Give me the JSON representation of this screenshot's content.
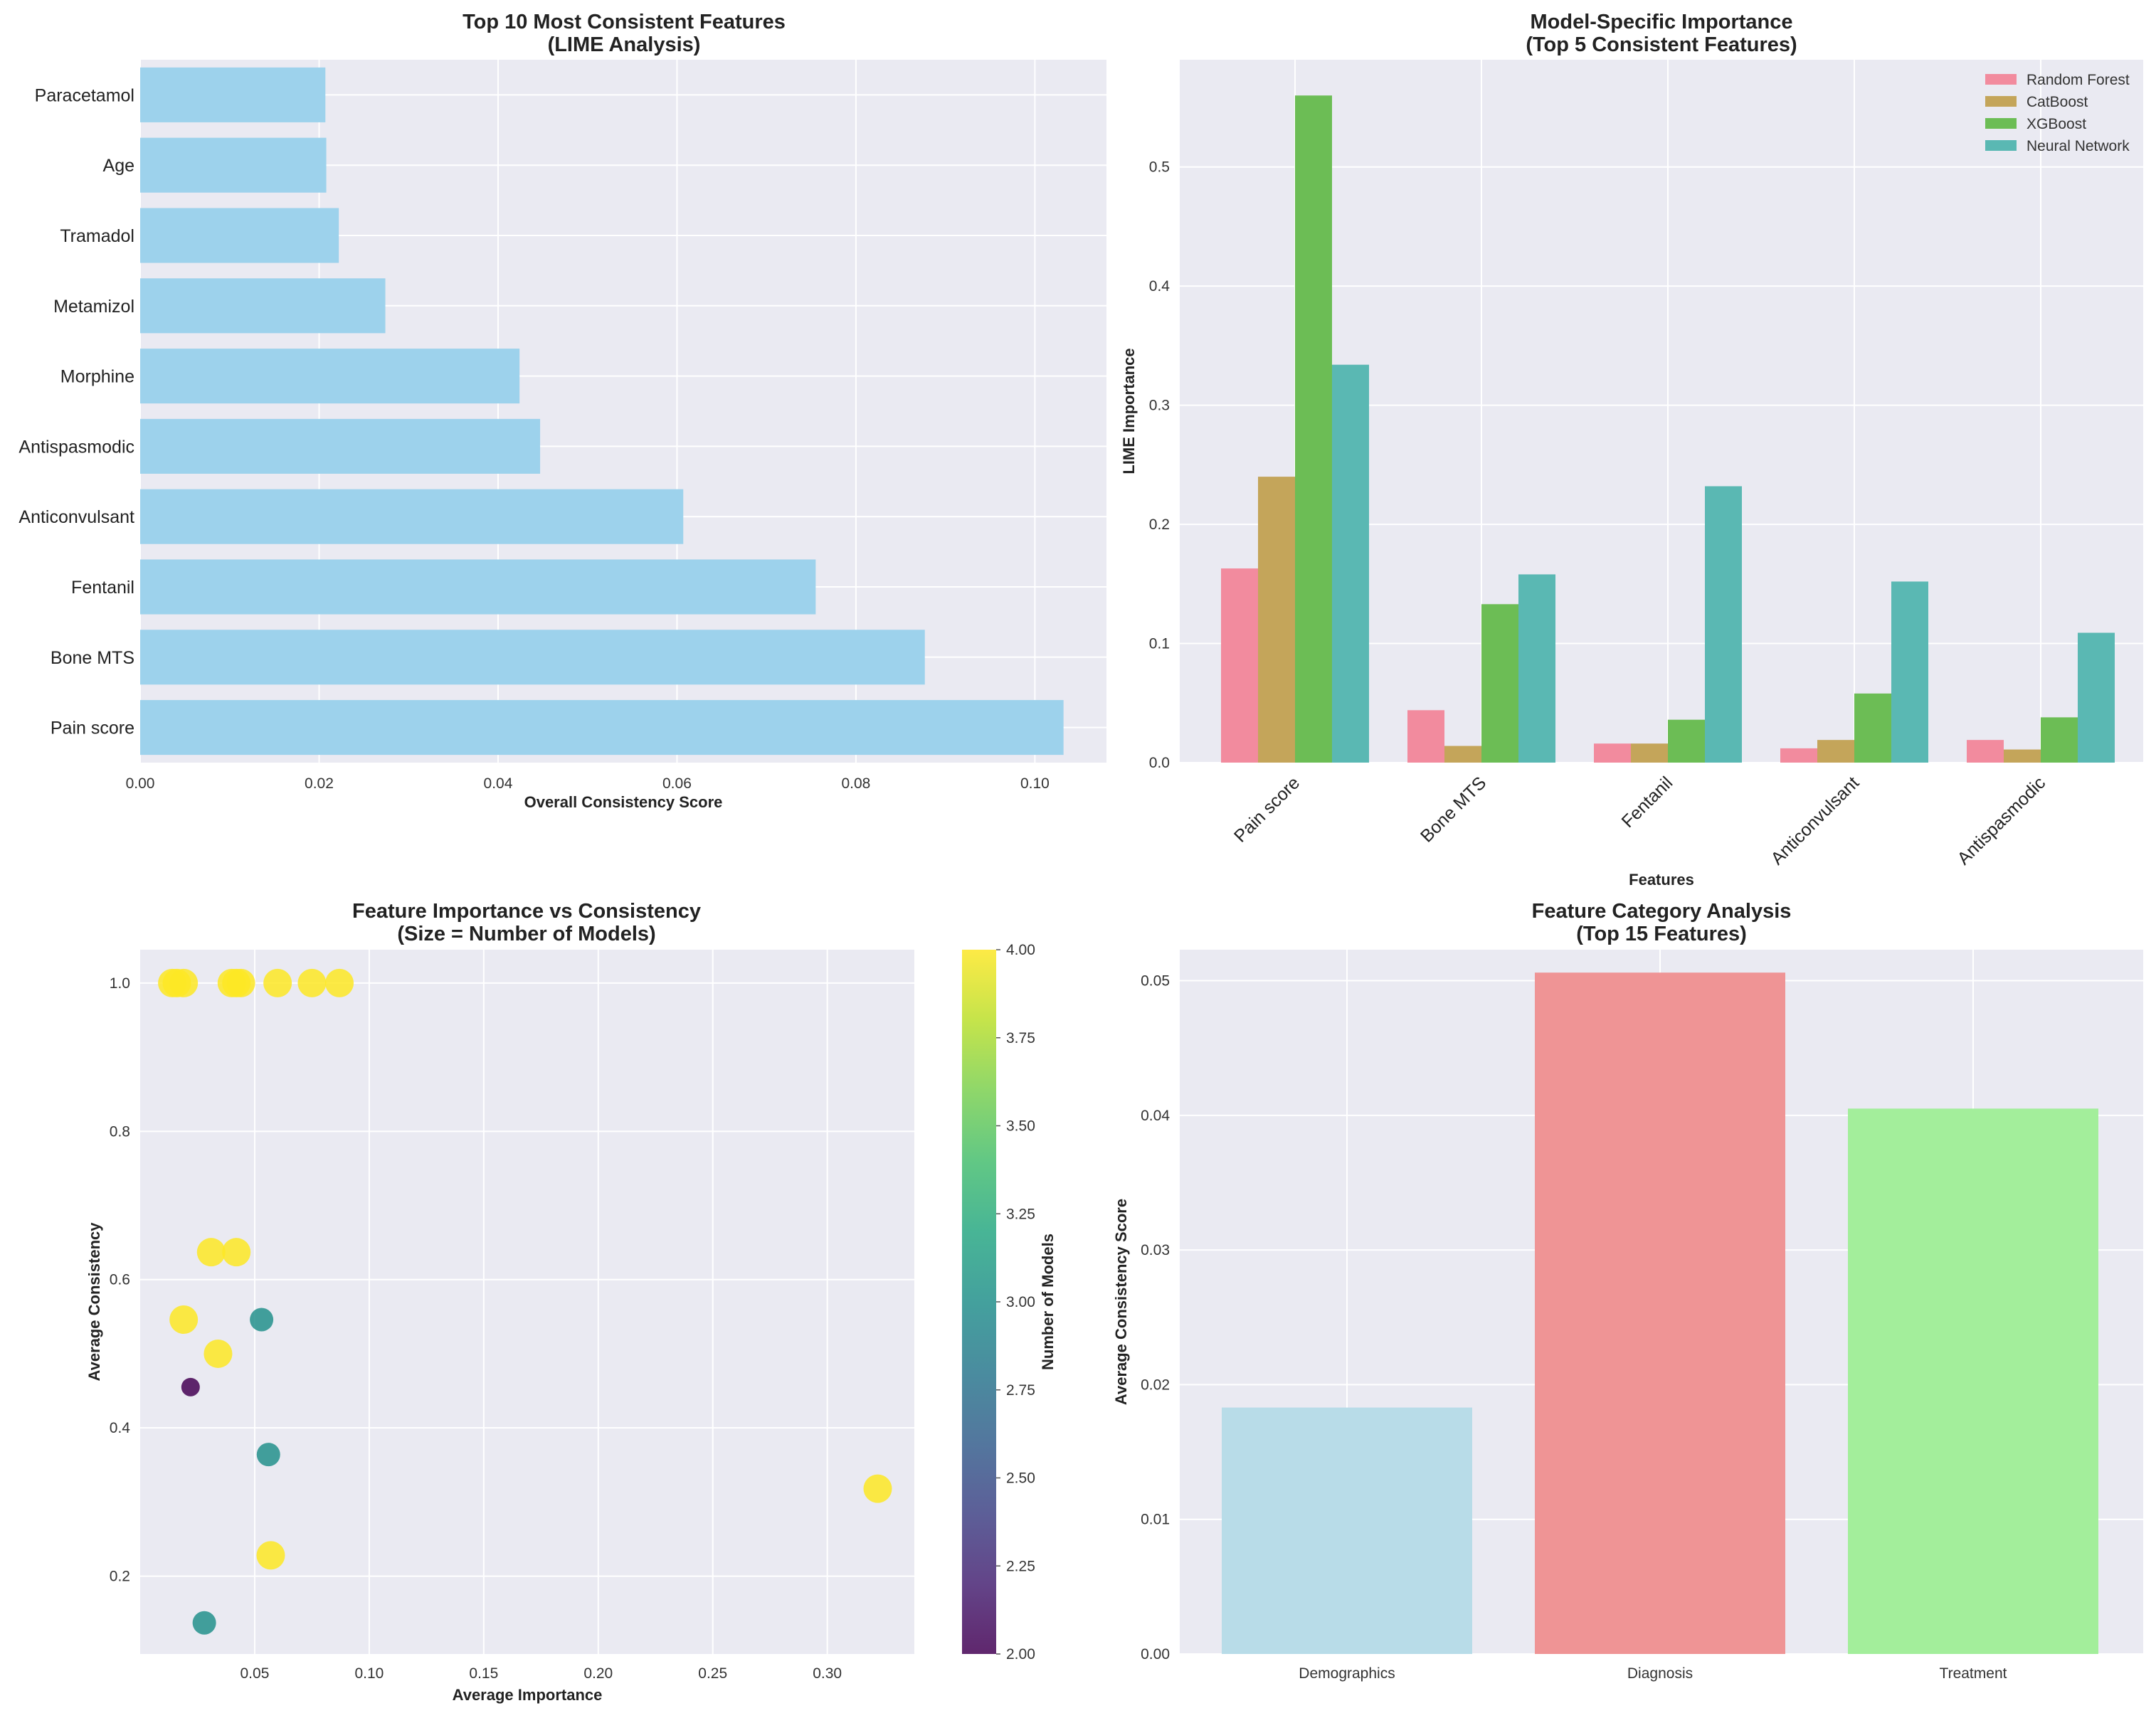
{
  "colors": {
    "panel_bg": "#eaeaf2",
    "grid": "#ffffff",
    "bar_blue": "#9dd2ec",
    "random_forest": "#f28b9e",
    "catboost": "#c4a55a",
    "xgboost": "#6cbd55",
    "neural_network": "#5ab8b3",
    "demographics": "#b8dce8",
    "diagnosis": "#ef9495",
    "treatment": "#a3ee9b"
  },
  "chart_data": [
    {
      "type": "bar",
      "orientation": "horizontal",
      "title": "Top 10 Most Consistent Features\n(LIME Analysis)",
      "xlabel": "Overall Consistency Score",
      "ylabel": "",
      "categories": [
        "Paracetamol",
        "Age",
        "Tramadol",
        "Metamizol",
        "Morphine",
        "Antispasmodic",
        "Anticonvulsant",
        "Fentanil",
        "Bone MTS",
        "Pain score"
      ],
      "values": [
        0.0207,
        0.0208,
        0.0222,
        0.0274,
        0.0424,
        0.0447,
        0.0607,
        0.0755,
        0.0877,
        0.1032
      ],
      "xlim": [
        0,
        0.108
      ],
      "xticks": [
        0.0,
        0.02,
        0.04,
        0.06,
        0.08,
        0.1
      ],
      "xtick_labels": [
        "0.00",
        "0.02",
        "0.04",
        "0.06",
        "0.08",
        "0.10"
      ]
    },
    {
      "type": "bar",
      "orientation": "grouped",
      "title": "Model-Specific Importance\n(Top 5 Consistent Features)",
      "xlabel": "Features",
      "ylabel": "LIME Importance",
      "categories": [
        "Pain score",
        "Bone MTS",
        "Fentanil",
        "Anticonvulsant",
        "Antispasmodic"
      ],
      "series": [
        {
          "name": "Random Forest",
          "values": [
            0.163,
            0.044,
            0.016,
            0.012,
            0.019
          ]
        },
        {
          "name": "CatBoost",
          "values": [
            0.24,
            0.014,
            0.016,
            0.019,
            0.011
          ]
        },
        {
          "name": "XGBoost",
          "values": [
            0.56,
            0.133,
            0.036,
            0.058,
            0.038
          ]
        },
        {
          "name": "Neural Network",
          "values": [
            0.334,
            0.158,
            0.232,
            0.152,
            0.109
          ]
        }
      ],
      "ylim": [
        0,
        0.59
      ],
      "yticks": [
        0.0,
        0.1,
        0.2,
        0.3,
        0.4,
        0.5
      ],
      "ytick_labels": [
        "0.0",
        "0.1",
        "0.2",
        "0.3",
        "0.4",
        "0.5"
      ],
      "legend": "top-right"
    },
    {
      "type": "scatter",
      "title": "Feature Importance vs Consistency\n(Size = Number of Models)",
      "xlabel": "Average Importance",
      "ylabel": "Average Consistency",
      "colorbar_label": "Number of Models",
      "points": [
        {
          "x": 0.014,
          "y": 1.0,
          "n": 4
        },
        {
          "x": 0.016,
          "y": 1.0,
          "n": 4
        },
        {
          "x": 0.019,
          "y": 1.0,
          "n": 4
        },
        {
          "x": 0.04,
          "y": 1.0,
          "n": 4
        },
        {
          "x": 0.042,
          "y": 1.0,
          "n": 4
        },
        {
          "x": 0.044,
          "y": 1.0,
          "n": 4
        },
        {
          "x": 0.06,
          "y": 1.0,
          "n": 4
        },
        {
          "x": 0.075,
          "y": 1.0,
          "n": 4
        },
        {
          "x": 0.087,
          "y": 1.0,
          "n": 4
        },
        {
          "x": 0.031,
          "y": 0.637,
          "n": 4
        },
        {
          "x": 0.042,
          "y": 0.637,
          "n": 4
        },
        {
          "x": 0.019,
          "y": 0.546,
          "n": 4
        },
        {
          "x": 0.034,
          "y": 0.5,
          "n": 4
        },
        {
          "x": 0.053,
          "y": 0.546,
          "n": 3
        },
        {
          "x": 0.022,
          "y": 0.455,
          "n": 2
        },
        {
          "x": 0.056,
          "y": 0.364,
          "n": 3
        },
        {
          "x": 0.322,
          "y": 0.318,
          "n": 4
        },
        {
          "x": 0.057,
          "y": 0.228,
          "n": 4
        },
        {
          "x": 0.028,
          "y": 0.137,
          "n": 3
        }
      ],
      "xlim": [
        0,
        0.338
      ],
      "ylim": [
        0.095,
        1.045
      ],
      "xticks": [
        0.05,
        0.1,
        0.15,
        0.2,
        0.25,
        0.3
      ],
      "xtick_labels": [
        "0.05",
        "0.10",
        "0.15",
        "0.20",
        "0.25",
        "0.30"
      ],
      "yticks": [
        0.2,
        0.4,
        0.6,
        0.8,
        1.0
      ],
      "ytick_labels": [
        "0.2",
        "0.4",
        "0.6",
        "0.8",
        "1.0"
      ],
      "colorbar_range": [
        2.0,
        4.0
      ],
      "colorbar_ticks": [
        "2.00",
        "2.25",
        "2.50",
        "2.75",
        "3.00",
        "3.25",
        "3.50",
        "3.75",
        "4.00"
      ]
    },
    {
      "type": "bar",
      "title": "Feature Category Analysis\n(Top 15 Features)",
      "xlabel": "",
      "ylabel": "Average Consistency Score",
      "categories": [
        "Demographics",
        "Diagnosis",
        "Treatment"
      ],
      "values": [
        0.0183,
        0.0506,
        0.0405
      ],
      "ylim": [
        0,
        0.0523
      ],
      "yticks": [
        0.0,
        0.01,
        0.02,
        0.03,
        0.04,
        0.05
      ],
      "ytick_labels": [
        "0.00",
        "0.01",
        "0.02",
        "0.03",
        "0.04",
        "0.05"
      ]
    }
  ]
}
